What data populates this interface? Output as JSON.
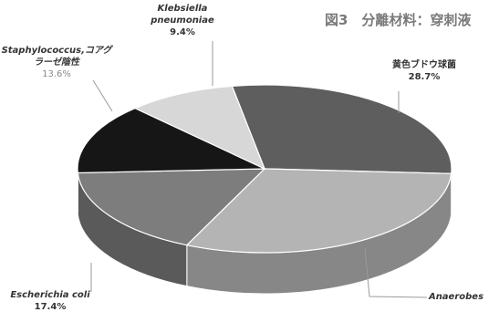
{
  "chart_data": {
    "type": "pie",
    "title": "図3　分離材料：穿刺液",
    "slices": [
      {
        "key": "s1",
        "label": "黄色ブドウ球菌",
        "percent": 28.7,
        "color": "#5e5e5e",
        "side": "#3f3f3f"
      },
      {
        "key": "s2",
        "label": "Anaerobes",
        "percent": 30.9,
        "color": "#b4b4b4",
        "side": "#878787"
      },
      {
        "key": "s3",
        "label": "Escherichia coli",
        "percent": 17.4,
        "color": "#7d7d7d",
        "side": "#5a5a5a"
      },
      {
        "key": "s4",
        "label": "Staphylococcus,コアグラーゼ陰性",
        "percent": 13.6,
        "color": "#161616",
        "side": "#050505"
      },
      {
        "key": "s5",
        "label": "Klebsiella pneumoniae",
        "percent": 9.4,
        "color": "#d7d7d7",
        "side": "#a8a8a8"
      }
    ],
    "labels": {
      "s1": {
        "lines": [
          "黄色ブドウ球菌"
        ],
        "pct": "28.7%"
      },
      "s2": {
        "lines": [
          "Anaerobes"
        ],
        "pct": ""
      },
      "s3": {
        "lines": [
          "Escherichia coli"
        ],
        "pct": "17.4%"
      },
      "s4": {
        "lines": [
          "Staphylococcus,コアグ",
          "ラーゼ陰性"
        ],
        "pct": "13.6%"
      },
      "s5": {
        "lines": [
          "Klebsiella",
          "pneumoniae"
        ],
        "pct": "9.4%"
      }
    }
  }
}
